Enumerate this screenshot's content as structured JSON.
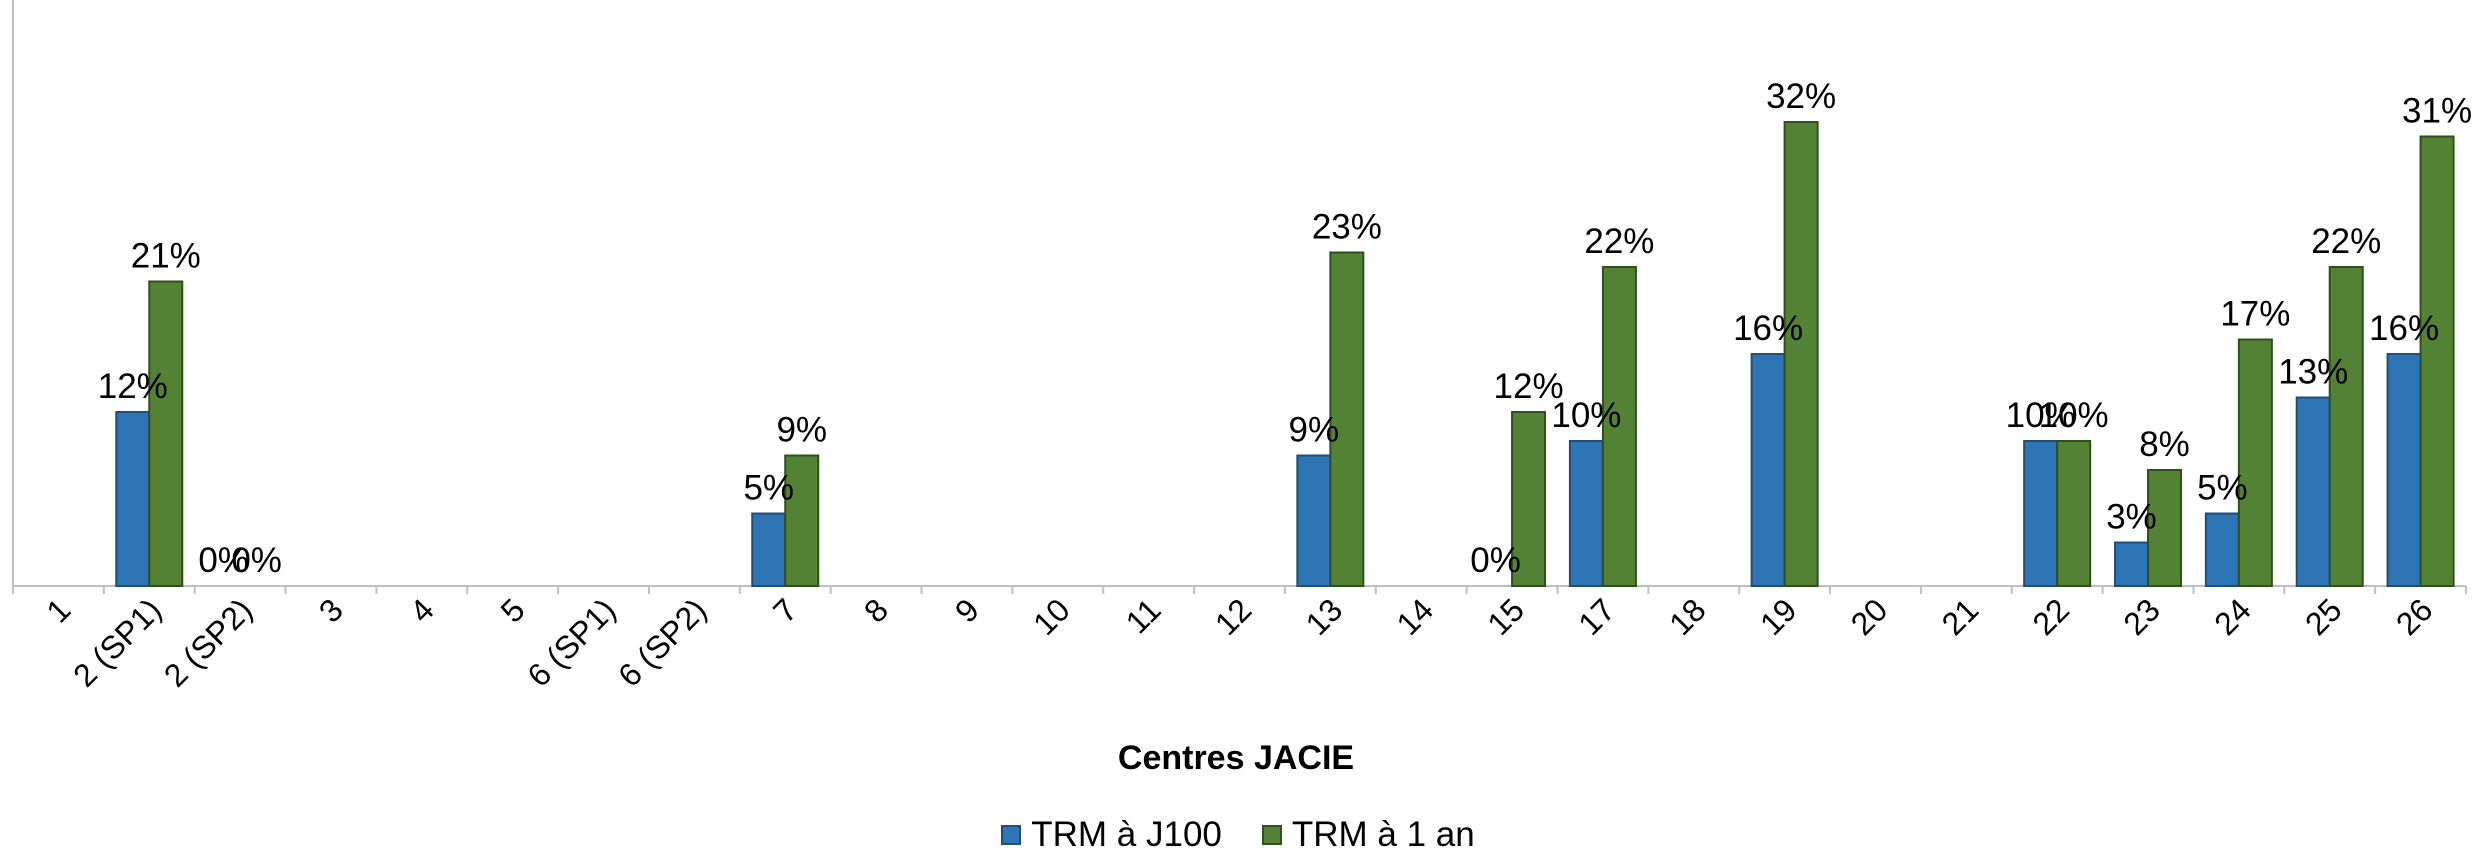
{
  "chart_data": {
    "type": "bar",
    "xlabel": "Centres JACIE",
    "ylabel": "",
    "ylim": [
      0,
      35
    ],
    "grid": false,
    "legend_position": "bottom",
    "categories": [
      "1",
      "2 (SP1)",
      "2 (SP2)",
      "3",
      "4",
      "5",
      "6 (SP1)",
      "6 (SP2)",
      "7",
      "8",
      "9",
      "10",
      "11",
      "12",
      "13",
      "14",
      "15",
      "17",
      "18",
      "19",
      "20",
      "21",
      "22",
      "23",
      "24",
      "25",
      "26"
    ],
    "series": [
      {
        "name": "TRM à J100",
        "color": "#2e75b6",
        "border": "#1f4e79",
        "values": [
          null,
          12,
          0,
          null,
          null,
          null,
          null,
          null,
          5,
          null,
          null,
          null,
          null,
          null,
          9,
          null,
          0,
          10,
          null,
          16,
          null,
          null,
          10,
          3,
          5,
          13,
          16
        ],
        "labels": [
          "",
          "12%",
          "0%",
          "",
          "",
          "",
          "",
          "",
          "5%",
          "",
          "",
          "",
          "",
          "",
          "9%",
          "",
          "0%",
          "10%",
          "",
          "16%",
          "",
          "",
          "10%",
          "3%",
          "5%",
          "13%",
          "16%"
        ]
      },
      {
        "name": "TRM à 1 an",
        "color": "#548235",
        "border": "#2f4f1c",
        "values": [
          null,
          21,
          0,
          null,
          null,
          null,
          null,
          null,
          9,
          null,
          null,
          null,
          null,
          null,
          23,
          null,
          12,
          22,
          null,
          32,
          null,
          null,
          10,
          8,
          17,
          22,
          31
        ],
        "labels": [
          "",
          "21%",
          "0%",
          "",
          "",
          "",
          "",
          "",
          "9%",
          "",
          "",
          "",
          "",
          "",
          "23%",
          "",
          "12%",
          "22%",
          "",
          "32%",
          "",
          "",
          "10%",
          "8%",
          "17%",
          "22%",
          "31%"
        ]
      }
    ]
  }
}
